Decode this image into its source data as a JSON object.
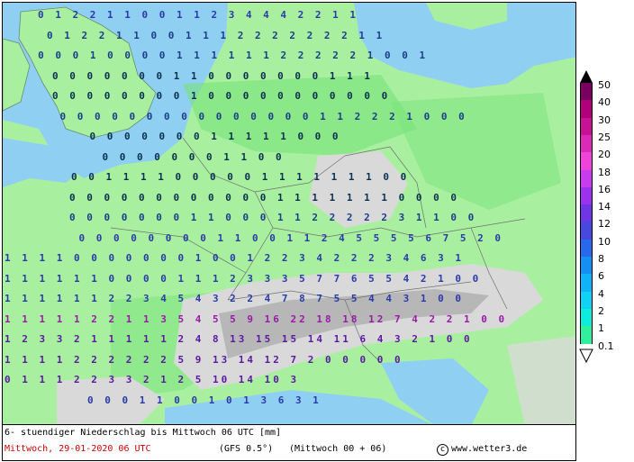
{
  "map": {
    "colors": {
      "sea": "#8fd0f2",
      "land_low": "#a8f0a0",
      "land_mid": "#78e278",
      "alps": "#d9d9d9",
      "alps_dark": "#a8a8a8"
    }
  },
  "rows": [
    "0 1 2 2 1 1 0 0 1 1 2 3 4 4 4 2 2 1 1",
    "0 1 2 2 1 1 0 0 1 1 1 2 2 2 2 2 2 2 1 1",
    "0 0 0 1 0 0 0 0 1 1 1 1 1 1 2 2 2 2 2 1 0 0 1",
    "0 0 0 0 0 0 0 1 1 0 0 0 0 0 0 0 1 1 1",
    "0 0 0 0 0 0 0 0 1 0 0 0 0 0 0 0 0 0 0 0",
    "0 0 0 0 0 0 0 0 0 0 0 0 0 0 0 1 1 2 2 2 1 0 0 0",
    "0 0 0 0 0 0 0 1 1 1 1 1 0 0 0",
    "0 0 0 0 0 0 0 1 1 0 0",
    "0 0 1 1 1 1 0 0 0 0 0 1 1 1 1 1 1 1 0 0",
    "0 0 0 0 0 0 0 0 0 0 0 0 1 1 1 1 1 1 1 0 0 0 0",
    "0 0 0 0 0 0 0 1 1 0 0 0 1 1 2 2 2 2 2 3 1 1 0 0",
    "0 0 0 0 0 0 0 0 1 1 0 0 1 1 2 4 5 5 5 5 6 7 5 2 0",
    "1 1 1 1 0 0 0 0 0 0 0 1 0 0 1 2 2 3 4 2 2 2 3 4 6 3 1",
    "1 1 1 1 1 1 0 0 0 0 1 1 1 2 3 3 3 5 7 7 6 5 5 4 2 1 0 0",
    "1 1 1 1 1 1 2 2 3 4 5 4 3 2 2 4 7 8 7 5 5 4 4 3 1 0 0",
    "1 1 1 1 1 2 2 1 1 3 5 4 5 5 9 16 22 18 18 12 7 4 2 2 1 0 0",
    "1 2 3 3 2 1 1 1 1 1 2 4 8 13 15 15 14 11 6 4 3 2 1 0 0",
    "1 1 1 1 2 2 2 2 2 2 5 9 13 14 12 7 2 0 0 0 0 0",
    "0 1 1 1 2 2 3 3 2 1 2 5 10 14 10 3",
    "0 0 0 1 1 0 0 1 0 1 3 6 3 1"
  ],
  "legend": {
    "values": [
      "50",
      "40",
      "30",
      "25",
      "20",
      "18",
      "16",
      "14",
      "12",
      "10",
      "8",
      "6",
      "4",
      "2",
      "1",
      "0.1"
    ],
    "colors": [
      "#7a0060",
      "#b0007a",
      "#c81296",
      "#dc2ab8",
      "#ee44dc",
      "#c83cf0",
      "#9c32ee",
      "#6e36e4",
      "#4848e0",
      "#2868ec",
      "#1490f2",
      "#10b2f8",
      "#10d2f4",
      "#10ecdc",
      "#30f09c"
    ]
  },
  "footer": {
    "line1": "6- stuendiger Niederschlag bis Mittwoch 06 UTC [mm]",
    "date": "Mittwoch, 29-01-2020  06 UTC",
    "model": "(GFS 0.5°)",
    "run": "(Mittwoch 00 + 06)",
    "copyright": "www.wetter3.de"
  }
}
